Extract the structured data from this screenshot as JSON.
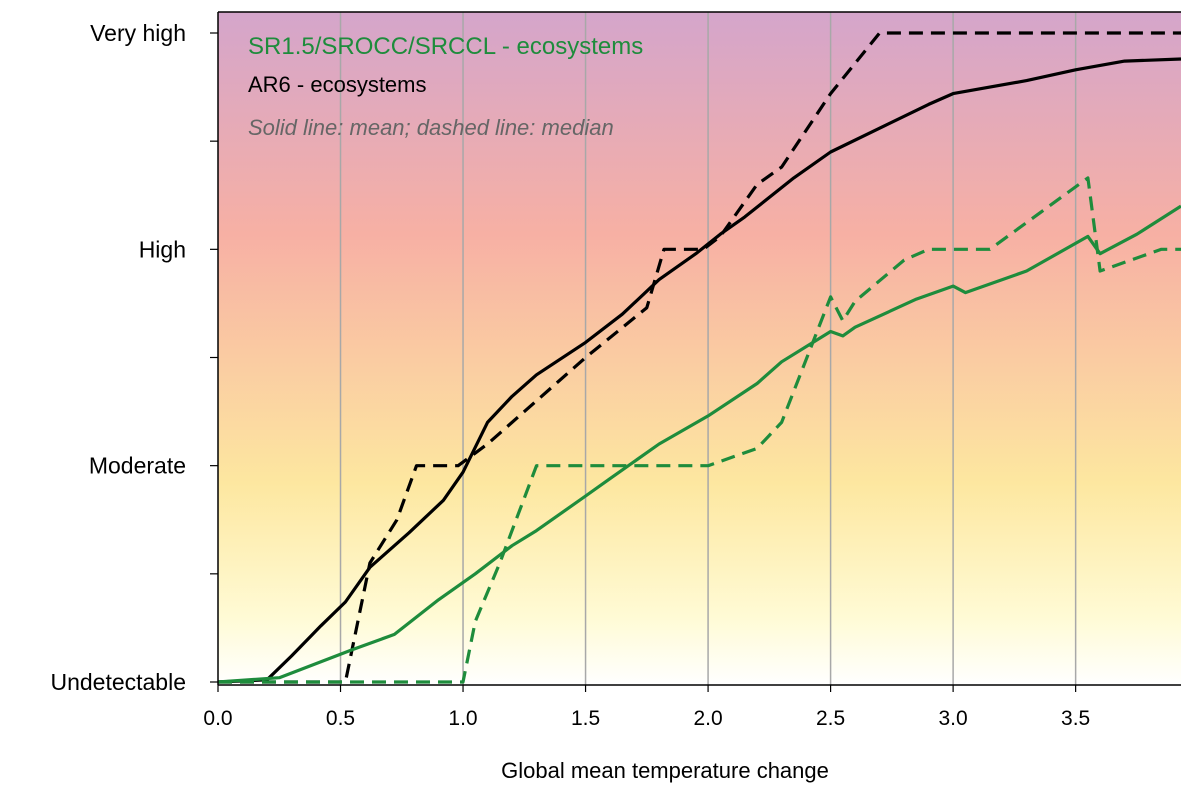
{
  "chart_data": {
    "type": "line",
    "xlabel": "Global mean temperature change",
    "xlim": [
      0,
      3.93
    ],
    "ylim": [
      0,
      3
    ],
    "x_ticks": [
      "0.0",
      "0.5",
      "1.0",
      "1.5",
      "2.0",
      "2.5",
      "3.0",
      "3.5"
    ],
    "x_tick_values": [
      0,
      0.5,
      1.0,
      1.5,
      2.0,
      2.5,
      3.0,
      3.5
    ],
    "y_levels": [
      {
        "value": 0,
        "label": "Undetectable"
      },
      {
        "value": 1,
        "label": "Moderate"
      },
      {
        "value": 2,
        "label": "High"
      },
      {
        "value": 3,
        "label": "Very high"
      }
    ],
    "y_minor_ticks": [
      0.5,
      1.5,
      2.5
    ],
    "grid": "vertical",
    "background_gradient": [
      "#d4a5cb",
      "#f7b0a4",
      "#fde7a0",
      "#fffbd5",
      "#ffffff"
    ],
    "legend": {
      "green_label": "SR1.5/SROCC/SRCCL - ecosystems",
      "black_label": "AR6 - ecosystems",
      "note": "Solid line: mean; dashed line: median",
      "placement": "top-left"
    },
    "colors": {
      "green": "#1e8c3c",
      "black": "#000000"
    },
    "series": [
      {
        "color": "black",
        "style": "solid",
        "x": [
          0,
          0.2,
          0.3,
          0.42,
          0.52,
          0.62,
          0.78,
          0.92,
          1.0,
          1.1,
          1.2,
          1.3,
          1.5,
          1.65,
          1.8,
          1.95,
          2.05,
          2.15,
          2.35,
          2.5,
          2.7,
          2.9,
          3.0,
          3.3,
          3.5,
          3.7,
          3.93
        ],
        "y": [
          0,
          0.01,
          0.12,
          0.26,
          0.37,
          0.53,
          0.69,
          0.84,
          0.97,
          1.2,
          1.32,
          1.42,
          1.57,
          1.7,
          1.86,
          1.98,
          2.07,
          2.15,
          2.33,
          2.45,
          2.56,
          2.67,
          2.72,
          2.78,
          2.83,
          2.87,
          2.88
        ]
      },
      {
        "color": "black",
        "style": "dashed",
        "x": [
          0,
          0.52,
          0.62,
          0.73,
          0.81,
          0.98,
          1.1,
          1.5,
          1.75,
          1.82,
          1.98,
          2.05,
          2.2,
          2.3,
          2.5,
          2.7,
          3.93
        ],
        "y": [
          0,
          0,
          0.55,
          0.75,
          1.0,
          1.0,
          1.1,
          1.5,
          1.73,
          2.0,
          2.0,
          2.06,
          2.3,
          2.38,
          2.72,
          3.0,
          3.0
        ]
      },
      {
        "color": "green",
        "style": "solid",
        "x": [
          0,
          0.25,
          0.55,
          0.72,
          0.9,
          1.05,
          1.2,
          1.3,
          1.5,
          1.6,
          1.8,
          2.0,
          2.2,
          2.3,
          2.5,
          2.55,
          2.6,
          2.85,
          3.0,
          3.05,
          3.3,
          3.55,
          3.6,
          3.75,
          3.93
        ],
        "y": [
          0,
          0.02,
          0.15,
          0.22,
          0.38,
          0.5,
          0.63,
          0.7,
          0.86,
          0.94,
          1.1,
          1.23,
          1.38,
          1.48,
          1.62,
          1.6,
          1.64,
          1.77,
          1.83,
          1.8,
          1.9,
          2.06,
          1.98,
          2.07,
          2.2
        ]
      },
      {
        "color": "green",
        "style": "dashed",
        "x": [
          0,
          1.0,
          1.05,
          1.15,
          1.3,
          2.0,
          2.2,
          2.3,
          2.5,
          2.55,
          2.6,
          2.8,
          2.9,
          3.15,
          3.55,
          3.6,
          3.85,
          3.93
        ],
        "y": [
          0,
          0,
          0.28,
          0.55,
          1.0,
          1.0,
          1.08,
          1.2,
          1.78,
          1.67,
          1.76,
          1.95,
          2.0,
          2.0,
          2.33,
          1.9,
          2.0,
          2.0
        ]
      }
    ]
  }
}
